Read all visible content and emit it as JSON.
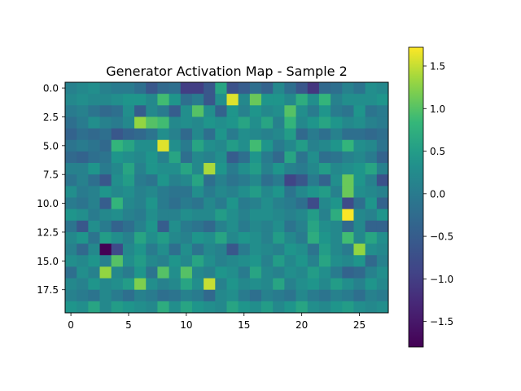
{
  "chart_data": {
    "type": "heatmap",
    "title": "Generator Activation Map - Sample 2",
    "xlabel": "",
    "ylabel": "",
    "colormap": "viridis",
    "vmin": -1.8,
    "vmax": 1.72,
    "x_ticks": [
      0,
      5,
      10,
      15,
      20,
      25
    ],
    "x_tick_labels": [
      "0",
      "5",
      "10",
      "15",
      "20",
      "25"
    ],
    "y_ticks": [
      0,
      2.5,
      5,
      7.5,
      10,
      12.5,
      15,
      17.5
    ],
    "y_tick_labels": [
      "0.0",
      "2.5",
      "5.0",
      "7.5",
      "10.0",
      "12.5",
      "15.0",
      "17.5"
    ],
    "colorbar_ticks": [
      -1.5,
      -1.0,
      -0.5,
      0.0,
      0.5,
      1.0,
      1.5
    ],
    "colorbar_tick_labels": [
      "−1.5",
      "−1.0",
      "−0.5",
      "0.0",
      "0.5",
      "1.0",
      "1.5"
    ],
    "grid": false,
    "rows": 20,
    "cols": 28,
    "values": [
      [
        0.1,
        0.2,
        0.3,
        0.1,
        0.0,
        0.0,
        -0.2,
        -0.6,
        -0.3,
        -0.2,
        -1.0,
        -1.0,
        -0.6,
        0.6,
        -0.7,
        -0.5,
        -0.2,
        -0.4,
        0.2,
        -0.2,
        -0.6,
        -1.1,
        -0.3,
        -0.2,
        0.1,
        -0.1,
        0.3,
        0.2
      ],
      [
        0.2,
        0.3,
        0.2,
        0.2,
        0.3,
        0.4,
        0.4,
        0.2,
        0.9,
        0.4,
        -0.2,
        0.0,
        -0.6,
        0.3,
        1.6,
        0.2,
        1.1,
        0.4,
        0.4,
        0.2,
        0.7,
        0.3,
        0.8,
        0.1,
        0.3,
        0.3,
        0.3,
        0.4
      ],
      [
        0.0,
        0.1,
        -0.1,
        -0.3,
        -0.2,
        0.3,
        -0.5,
        0.2,
        0.0,
        -0.5,
        0.3,
        1.0,
        0.3,
        -0.4,
        0.4,
        0.1,
        0.4,
        0.2,
        0.3,
        1.0,
        0.3,
        0.0,
        0.4,
        0.0,
        -0.1,
        0.4,
        -0.1,
        0.0
      ],
      [
        -0.2,
        0.0,
        0.3,
        0.1,
        0.0,
        0.2,
        1.3,
        1.0,
        0.9,
        0.2,
        0.3,
        0.2,
        0.4,
        0.3,
        0.4,
        0.6,
        0.3,
        0.6,
        0.1,
        0.8,
        0.2,
        0.4,
        0.6,
        0.4,
        0.2,
        0.3,
        0.1,
        0.0
      ],
      [
        -0.4,
        -0.2,
        -0.3,
        -0.2,
        -0.6,
        -0.4,
        -0.3,
        -0.1,
        0.3,
        0.1,
        -0.3,
        0.2,
        -0.2,
        0.4,
        0.0,
        0.3,
        0.2,
        0.1,
        0.2,
        0.5,
        -0.3,
        0.0,
        -0.2,
        0.1,
        -0.2,
        -0.2,
        -0.3,
        -0.2
      ],
      [
        -0.1,
        0.0,
        -0.1,
        -0.3,
        0.8,
        0.6,
        0.3,
        0.3,
        1.6,
        0.3,
        0.0,
        0.6,
        0.3,
        0.2,
        0.5,
        0.3,
        0.9,
        0.4,
        0.0,
        0.2,
        0.5,
        0.1,
        0.2,
        0.4,
        0.8,
        0.3,
        0.2,
        -0.1
      ],
      [
        -0.3,
        -0.4,
        -0.2,
        -0.1,
        0.4,
        0.3,
        0.2,
        0.4,
        0.1,
        0.6,
        -0.2,
        0.2,
        0.1,
        0.3,
        -0.5,
        -0.2,
        0.4,
        0.0,
        -0.3,
        0.6,
        -0.1,
        0.3,
        -0.2,
        -0.1,
        0.1,
        0.2,
        0.0,
        -0.4
      ],
      [
        0.1,
        0.1,
        0.4,
        0.0,
        0.2,
        0.6,
        0.1,
        0.4,
        0.3,
        0.3,
        0.6,
        0.2,
        1.4,
        0.4,
        0.0,
        0.3,
        0.5,
        0.1,
        0.4,
        0.1,
        0.0,
        0.2,
        0.5,
        0.2,
        0.3,
        0.4,
        0.6,
        0.1
      ],
      [
        -0.1,
        0.1,
        -0.2,
        -0.6,
        0.3,
        0.5,
        0.0,
        -0.1,
        0.4,
        0.1,
        0.2,
        0.6,
        -0.2,
        0.1,
        -0.1,
        0.0,
        0.2,
        -0.2,
        0.0,
        -0.9,
        -0.6,
        0.0,
        -0.4,
        0.3,
        1.1,
        0.4,
        0.1,
        -0.7
      ],
      [
        0.3,
        0.0,
        0.1,
        0.4,
        0.2,
        0.3,
        0.1,
        0.2,
        0.0,
        -0.1,
        -0.1,
        0.3,
        0.0,
        0.2,
        0.1,
        0.3,
        0.5,
        0.2,
        0.4,
        -0.1,
        0.2,
        0.4,
        0.5,
        0.1,
        1.1,
        0.3,
        0.2,
        0.1
      ],
      [
        0.0,
        -0.1,
        0.1,
        -0.5,
        0.8,
        0.2,
        0.1,
        0.4,
        0.0,
        -0.2,
        0.0,
        -0.1,
        0.2,
        0.0,
        0.4,
        0.0,
        0.1,
        0.3,
        0.1,
        0.0,
        -0.2,
        -0.8,
        0.2,
        0.4,
        -0.8,
        -0.2,
        0.4,
        -0.4
      ],
      [
        0.4,
        0.3,
        0.0,
        0.2,
        0.3,
        0.1,
        0.0,
        0.3,
        0.1,
        0.1,
        0.3,
        0.2,
        0.2,
        0.5,
        0.3,
        0.1,
        0.3,
        0.3,
        0.2,
        0.1,
        0.2,
        0.5,
        0.1,
        0.7,
        1.7,
        0.2,
        0.1,
        0.4
      ],
      [
        -0.1,
        -0.6,
        0.3,
        0.0,
        -0.4,
        -0.2,
        0.1,
        0.4,
        -0.5,
        0.3,
        0.0,
        -0.1,
        -0.3,
        0.1,
        0.3,
        0.0,
        0.2,
        0.1,
        0.3,
        -0.1,
        0.1,
        0.6,
        0.3,
        0.2,
        -0.3,
        0.2,
        -0.4,
        -0.4
      ],
      [
        0.2,
        0.4,
        -0.1,
        0.5,
        0.3,
        0.1,
        0.6,
        0.3,
        0.5,
        0.2,
        0.1,
        0.4,
        0.3,
        0.6,
        0.2,
        0.4,
        0.3,
        0.1,
        0.5,
        0.2,
        0.0,
        0.7,
        0.4,
        0.2,
        0.9,
        0.2,
        0.6,
        0.3
      ],
      [
        0.1,
        -0.3,
        0.2,
        -1.8,
        -0.8,
        0.2,
        0.4,
        0.0,
        0.3,
        -0.2,
        0.3,
        -0.1,
        0.2,
        0.1,
        -0.6,
        0.0,
        0.3,
        0.2,
        0.1,
        0.4,
        0.3,
        -0.1,
        0.5,
        0.2,
        0.0,
        1.3,
        0.3,
        0.2
      ],
      [
        0.3,
        0.2,
        0.4,
        0.1,
        1.0,
        0.3,
        0.5,
        0.2,
        0.1,
        0.4,
        0.2,
        0.6,
        0.3,
        0.1,
        0.2,
        0.3,
        0.4,
        0.1,
        0.5,
        0.2,
        0.4,
        0.1,
        0.6,
        0.3,
        0.2,
        0.4,
        -0.3,
        0.1
      ],
      [
        -0.2,
        0.3,
        0.1,
        1.3,
        0.2,
        0.0,
        0.4,
        -0.1,
        1.0,
        0.3,
        1.0,
        0.2,
        0.1,
        0.4,
        0.3,
        0.0,
        0.6,
        0.2,
        0.1,
        0.3,
        0.2,
        0.5,
        0.3,
        0.0,
        -0.4,
        -0.3,
        0.1,
        0.3
      ],
      [
        0.2,
        0.1,
        0.4,
        0.2,
        0.3,
        0.5,
        1.2,
        0.3,
        0.1,
        0.2,
        0.6,
        0.3,
        1.5,
        0.1,
        0.4,
        0.2,
        0.3,
        0.2,
        0.6,
        0.1,
        0.3,
        0.4,
        0.2,
        0.5,
        0.3,
        0.1,
        0.4,
        0.2
      ],
      [
        0.1,
        0.0,
        -0.1,
        0.2,
        0.0,
        -0.2,
        0.1,
        0.0,
        -0.2,
        -0.1,
        0.1,
        0.0,
        -0.3,
        0.2,
        0.3,
        0.0,
        -0.2,
        0.1,
        0.0,
        -0.1,
        0.2,
        0.0,
        -0.1,
        0.1,
        0.0,
        -0.2,
        0.1,
        0.0
      ],
      [
        0.4,
        0.3,
        0.6,
        0.2,
        0.5,
        0.4,
        0.3,
        0.2,
        0.7,
        0.3,
        0.6,
        0.4,
        0.3,
        0.2,
        0.6,
        0.4,
        0.3,
        0.5,
        0.2,
        0.4,
        0.6,
        0.3,
        0.2,
        0.4,
        0.5,
        0.3,
        0.2,
        0.3
      ]
    ]
  }
}
